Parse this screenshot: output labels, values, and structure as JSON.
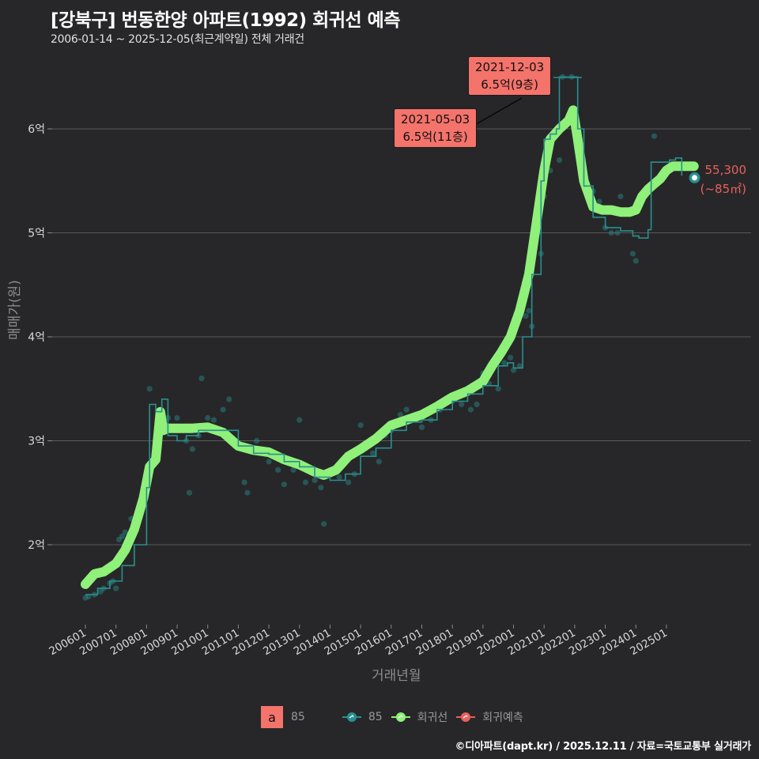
{
  "header": {
    "title": "[강북구] 번동한양 아파트(1992) 회귀선 예측",
    "subtitle": "2006-01-14 ~ 2025-12-05(최근계약일) 전체 거래건"
  },
  "axes": {
    "ylabel": "매매가(원)",
    "xlabel": "거래년월",
    "yticks": [
      {
        "label": "2억",
        "value": 2.0
      },
      {
        "label": "3억",
        "value": 3.0
      },
      {
        "label": "4억",
        "value": 4.0
      },
      {
        "label": "5억",
        "value": 5.0
      },
      {
        "label": "6억",
        "value": 6.0
      }
    ],
    "xticks": [
      "200601",
      "200701",
      "200801",
      "200901",
      "201001",
      "201101",
      "201201",
      "201301",
      "201401",
      "201501",
      "201601",
      "201701",
      "201801",
      "201901",
      "202001",
      "202101",
      "202201",
      "202301",
      "202401",
      "202501"
    ]
  },
  "annotations": [
    {
      "date": "2021-12-03",
      "price": "6.5억(9층)"
    },
    {
      "date": "2021-05-03",
      "price": "6.5억(11층)"
    }
  ],
  "end_label": {
    "value": "55,300",
    "area": "(~85㎡)"
  },
  "legend": {
    "box_letter": "a",
    "box_label": "85",
    "items": [
      {
        "label": "85",
        "color": "#2a8f8f"
      },
      {
        "label": "회귀선",
        "color": "#8ff07a"
      },
      {
        "label": "회귀예측",
        "color": "#e8605c"
      }
    ]
  },
  "footer": "©디아파트(dapt.kr) / 2025.12.11 / 자료=국토교통부 실거래가",
  "colors": {
    "background": "#272729",
    "grid": "#5a5a5a",
    "regression": "#8ff07a",
    "trades": "#2a8f8f",
    "prediction": "#e8605c",
    "annotation_fill": "#f4736b"
  },
  "chart_data": {
    "type": "line",
    "title": "[강북구] 번동한양 아파트(1992) 회귀선 예측",
    "subtitle": "2006-01-14 ~ 2025-12-05(최근계약일) 전체 거래건",
    "xlabel": "거래년월",
    "ylabel": "매매가(원)",
    "ylim": [
      1.3,
      6.9
    ],
    "y_unit": "억",
    "grid": true,
    "legend_position": "bottom",
    "series": [
      {
        "name": "회귀선",
        "type": "line",
        "x": [
          2006.0,
          2006.3,
          2006.6,
          2007.0,
          2007.3,
          2007.6,
          2007.9,
          2008.1,
          2008.3,
          2008.45,
          2008.55,
          2008.7,
          2009.0,
          2009.5,
          2010.0,
          2010.5,
          2011.0,
          2011.5,
          2012.0,
          2012.5,
          2013.0,
          2013.5,
          2013.8,
          2014.2,
          2014.6,
          2015.0,
          2015.5,
          2016.0,
          2016.5,
          2017.0,
          2017.5,
          2018.0,
          2018.5,
          2019.0,
          2019.3,
          2019.6,
          2019.9,
          2020.2,
          2020.5,
          2020.8,
          2021.0,
          2021.2,
          2021.5,
          2021.8,
          2021.95,
          2022.1,
          2022.3,
          2022.6,
          2022.9,
          2023.2,
          2023.5,
          2023.8,
          2024.0,
          2024.2,
          2024.4,
          2024.6,
          2024.8,
          2025.0,
          2025.2,
          2025.4,
          2025.6,
          2025.9
        ],
        "values": [
          1.62,
          1.72,
          1.74,
          1.82,
          1.95,
          2.15,
          2.45,
          2.75,
          2.82,
          3.28,
          3.1,
          3.12,
          3.12,
          3.12,
          3.13,
          3.08,
          2.95,
          2.91,
          2.89,
          2.82,
          2.77,
          2.7,
          2.67,
          2.72,
          2.85,
          2.92,
          3.02,
          3.15,
          3.2,
          3.25,
          3.33,
          3.42,
          3.48,
          3.57,
          3.72,
          3.85,
          4.0,
          4.25,
          4.6,
          5.2,
          5.6,
          5.9,
          6.0,
          6.08,
          6.18,
          5.9,
          5.5,
          5.25,
          5.22,
          5.22,
          5.2,
          5.2,
          5.22,
          5.35,
          5.42,
          5.47,
          5.52,
          5.6,
          5.64,
          5.64,
          5.64,
          5.64
        ]
      },
      {
        "name": "85 (거래 이동평균)",
        "type": "step",
        "x": [
          2006.0,
          2006.4,
          2006.8,
          2007.2,
          2007.6,
          2008.0,
          2008.1,
          2008.3,
          2008.5,
          2008.7,
          2009.0,
          2009.3,
          2009.7,
          2010.0,
          2010.5,
          2011.0,
          2011.5,
          2012.0,
          2012.5,
          2013.0,
          2013.5,
          2014.0,
          2014.5,
          2015.0,
          2015.5,
          2016.0,
          2016.5,
          2017.0,
          2017.5,
          2018.0,
          2018.5,
          2019.0,
          2019.5,
          2019.8,
          2020.0,
          2020.3,
          2020.6,
          2020.9,
          2021.0,
          2021.2,
          2021.4,
          2021.5,
          2021.6,
          2022.0,
          2022.1,
          2022.3,
          2022.6,
          2023.0,
          2023.5,
          2023.9,
          2024.1,
          2024.4,
          2024.5,
          2024.7,
          2025.0,
          2025.1,
          2025.3,
          2025.5
        ],
        "values": [
          1.52,
          1.58,
          1.65,
          1.8,
          2.0,
          2.55,
          3.35,
          3.28,
          3.4,
          3.05,
          3.0,
          3.05,
          3.1,
          3.1,
          3.1,
          2.95,
          2.88,
          2.87,
          2.8,
          2.75,
          2.65,
          2.62,
          2.68,
          2.85,
          2.93,
          3.1,
          3.18,
          3.2,
          3.3,
          3.38,
          3.45,
          3.53,
          3.72,
          3.75,
          3.7,
          4.0,
          4.6,
          5.5,
          5.9,
          5.95,
          6.0,
          6.5,
          6.5,
          6.5,
          6.0,
          5.45,
          5.15,
          5.05,
          5.02,
          4.97,
          4.95,
          5.03,
          5.68,
          5.68,
          5.68,
          5.7,
          5.72,
          5.55
        ]
      },
      {
        "name": "회귀예측",
        "type": "point",
        "x": [
          2025.92
        ],
        "values": [
          5.53
        ],
        "label": "55,300 (~85㎡)"
      }
    ],
    "scatter_sample": [
      [
        2006.0,
        1.49
      ],
      [
        2006.1,
        1.5
      ],
      [
        2006.3,
        1.52
      ],
      [
        2006.5,
        1.55
      ],
      [
        2006.6,
        1.58
      ],
      [
        2006.8,
        1.63
      ],
      [
        2006.9,
        1.65
      ],
      [
        2007.0,
        1.58
      ],
      [
        2007.1,
        2.05
      ],
      [
        2007.2,
        2.08
      ],
      [
        2007.3,
        2.12
      ],
      [
        2007.5,
        2.25
      ],
      [
        2007.8,
        2.32
      ],
      [
        2008.0,
        2.7
      ],
      [
        2008.1,
        3.5
      ],
      [
        2008.4,
        3.25
      ],
      [
        2008.7,
        3.22
      ],
      [
        2009.0,
        3.22
      ],
      [
        2009.2,
        3.12
      ],
      [
        2009.3,
        3.0
      ],
      [
        2009.4,
        2.5
      ],
      [
        2009.5,
        2.92
      ],
      [
        2009.7,
        3.05
      ],
      [
        2009.8,
        3.6
      ],
      [
        2010.0,
        3.22
      ],
      [
        2010.2,
        3.2
      ],
      [
        2010.5,
        3.3
      ],
      [
        2010.7,
        3.4
      ],
      [
        2011.0,
        2.98
      ],
      [
        2011.2,
        2.6
      ],
      [
        2011.3,
        2.5
      ],
      [
        2011.6,
        3.0
      ],
      [
        2012.0,
        2.8
      ],
      [
        2012.3,
        2.72
      ],
      [
        2012.5,
        2.58
      ],
      [
        2012.8,
        2.72
      ],
      [
        2013.0,
        3.2
      ],
      [
        2013.2,
        2.6
      ],
      [
        2013.5,
        2.62
      ],
      [
        2013.7,
        2.55
      ],
      [
        2013.8,
        2.2
      ],
      [
        2014.0,
        2.72
      ],
      [
        2014.3,
        2.65
      ],
      [
        2014.6,
        2.6
      ],
      [
        2014.8,
        2.68
      ],
      [
        2015.0,
        3.15
      ],
      [
        2015.2,
        2.95
      ],
      [
        2015.4,
        2.88
      ],
      [
        2015.6,
        2.8
      ],
      [
        2015.8,
        3.05
      ],
      [
        2016.0,
        3.1
      ],
      [
        2016.3,
        3.25
      ],
      [
        2016.5,
        3.3
      ],
      [
        2016.8,
        3.2
      ],
      [
        2017.0,
        3.13
      ],
      [
        2017.3,
        3.2
      ],
      [
        2017.6,
        3.3
      ],
      [
        2017.8,
        3.4
      ],
      [
        2018.0,
        3.38
      ],
      [
        2018.3,
        3.35
      ],
      [
        2018.6,
        3.3
      ],
      [
        2018.8,
        3.35
      ],
      [
        2019.0,
        3.65
      ],
      [
        2019.2,
        3.55
      ],
      [
        2019.5,
        3.5
      ],
      [
        2019.7,
        3.75
      ],
      [
        2019.9,
        3.8
      ],
      [
        2020.0,
        3.68
      ],
      [
        2020.2,
        3.72
      ],
      [
        2020.4,
        4.2
      ],
      [
        2020.5,
        4.25
      ],
      [
        2020.6,
        4.1
      ],
      [
        2020.8,
        5.0
      ],
      [
        2020.9,
        4.8
      ],
      [
        2021.0,
        5.35
      ],
      [
        2021.1,
        5.8
      ],
      [
        2021.2,
        5.6
      ],
      [
        2021.3,
        5.95
      ],
      [
        2021.5,
        5.7
      ],
      [
        2021.6,
        6.5
      ],
      [
        2021.9,
        6.5
      ],
      [
        2022.4,
        5.48
      ],
      [
        2022.6,
        5.4
      ],
      [
        2022.8,
        5.3
      ],
      [
        2023.0,
        5.05
      ],
      [
        2023.2,
        5.0
      ],
      [
        2023.4,
        5.0
      ],
      [
        2023.5,
        5.35
      ],
      [
        2023.7,
        5.2
      ],
      [
        2023.9,
        4.8
      ],
      [
        2024.0,
        4.73
      ],
      [
        2024.1,
        5.25
      ],
      [
        2024.6,
        5.93
      ]
    ]
  }
}
